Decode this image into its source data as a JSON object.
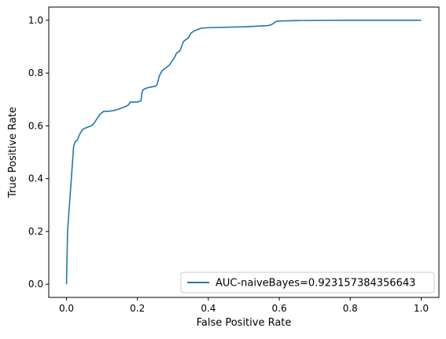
{
  "chart_data": {
    "type": "line",
    "xlabel": "False Positive Rate",
    "ylabel": "True Positive Rate",
    "xlim": [
      -0.05,
      1.05
    ],
    "ylim": [
      -0.05,
      1.05
    ],
    "xticks": [
      "0.0",
      "0.2",
      "0.4",
      "0.6",
      "0.8",
      "1.0"
    ],
    "yticks": [
      "0.0",
      "0.2",
      "0.4",
      "0.6",
      "0.8",
      "1.0"
    ],
    "grid": false,
    "legend_position": "lower-right",
    "series": [
      {
        "name": "AUC-naiveBayes=0.923157384356643",
        "color": "#1f77b4",
        "x": [
          0.0,
          0.003,
          0.02,
          0.022,
          0.025,
          0.03,
          0.032,
          0.036,
          0.04,
          0.045,
          0.05,
          0.06,
          0.07,
          0.078,
          0.085,
          0.09,
          0.095,
          0.1,
          0.105,
          0.12,
          0.14,
          0.15,
          0.16,
          0.17,
          0.175,
          0.18,
          0.2,
          0.21,
          0.212,
          0.215,
          0.22,
          0.23,
          0.25,
          0.255,
          0.26,
          0.262,
          0.27,
          0.28,
          0.29,
          0.295,
          0.3,
          0.305,
          0.31,
          0.315,
          0.32,
          0.33,
          0.335,
          0.34,
          0.345,
          0.35,
          0.36,
          0.38,
          0.4,
          0.5,
          0.57,
          0.58,
          0.585,
          0.59,
          0.6,
          0.65,
          0.8,
          1.0
        ],
        "y": [
          0.0,
          0.2,
          0.52,
          0.53,
          0.54,
          0.545,
          0.55,
          0.565,
          0.575,
          0.585,
          0.59,
          0.595,
          0.6,
          0.61,
          0.625,
          0.635,
          0.645,
          0.65,
          0.655,
          0.655,
          0.66,
          0.665,
          0.67,
          0.675,
          0.68,
          0.69,
          0.69,
          0.695,
          0.72,
          0.735,
          0.74,
          0.745,
          0.75,
          0.755,
          0.78,
          0.79,
          0.81,
          0.82,
          0.83,
          0.84,
          0.85,
          0.86,
          0.875,
          0.88,
          0.885,
          0.92,
          0.925,
          0.93,
          0.935,
          0.95,
          0.96,
          0.97,
          0.972,
          0.975,
          0.98,
          0.985,
          0.99,
          0.995,
          0.997,
          0.999,
          1.0,
          1.0
        ]
      }
    ]
  }
}
